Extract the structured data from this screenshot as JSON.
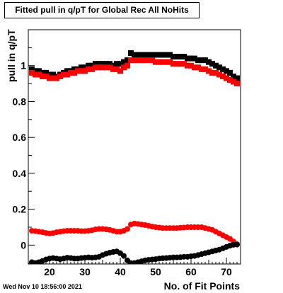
{
  "chart_data": {
    "type": "scatter",
    "title": "Fitted pull in q/pT for Global Rec All NoHits",
    "xlabel": "No. of Fit Points",
    "ylabel": "pull in q/pT",
    "xlim": [
      14,
      74
    ],
    "ylim": [
      -0.105,
      1.2
    ],
    "xticks": [
      20,
      30,
      40,
      50,
      60,
      70
    ],
    "yticks": [
      0,
      0.2,
      0.4,
      0.6,
      0.8,
      1
    ],
    "grid": false,
    "legend": "none",
    "series": [
      {
        "color": "#000000",
        "marker": "square",
        "x": [
          15,
          16,
          17,
          18,
          19,
          20,
          21,
          22,
          23,
          24,
          25,
          26,
          27,
          28,
          29,
          30,
          31,
          32,
          33,
          34,
          35,
          36,
          37,
          38,
          39,
          40,
          41,
          42,
          43,
          44,
          45,
          46,
          47,
          48,
          49,
          50,
          51,
          52,
          53,
          54,
          55,
          56,
          57,
          58,
          59,
          60,
          61,
          62,
          63,
          64,
          65,
          66,
          67,
          68,
          69,
          70,
          71,
          72,
          73
        ],
        "values": [
          0.98,
          0.97,
          0.97,
          0.96,
          0.96,
          0.95,
          0.95,
          0.94,
          0.95,
          0.96,
          0.97,
          0.97,
          0.98,
          0.98,
          0.99,
          0.99,
          1.0,
          1.0,
          1.01,
          1.01,
          1.01,
          1.01,
          1.01,
          1.0,
          1.01,
          1.01,
          1.02,
          1.03,
          1.07,
          1.06,
          1.06,
          1.06,
          1.06,
          1.06,
          1.06,
          1.06,
          1.06,
          1.06,
          1.06,
          1.06,
          1.05,
          1.05,
          1.05,
          1.05,
          1.04,
          1.04,
          1.04,
          1.03,
          1.03,
          1.03,
          1.02,
          1.01,
          1.0,
          0.99,
          0.98,
          0.97,
          0.96,
          0.94,
          0.93
        ]
      },
      {
        "color": "#ff0000",
        "marker": "square",
        "x": [
          15,
          16,
          17,
          18,
          19,
          20,
          21,
          22,
          23,
          24,
          25,
          26,
          27,
          28,
          29,
          30,
          31,
          32,
          33,
          34,
          35,
          36,
          37,
          38,
          39,
          40,
          41,
          42,
          43,
          44,
          45,
          46,
          47,
          48,
          49,
          50,
          51,
          52,
          53,
          54,
          55,
          56,
          57,
          58,
          59,
          60,
          61,
          62,
          63,
          64,
          65,
          66,
          67,
          68,
          69,
          70,
          71,
          72,
          73
        ],
        "values": [
          0.96,
          0.95,
          0.95,
          0.94,
          0.94,
          0.93,
          0.93,
          0.93,
          0.94,
          0.95,
          0.95,
          0.96,
          0.96,
          0.97,
          0.97,
          0.97,
          0.98,
          0.98,
          0.99,
          0.99,
          0.99,
          0.99,
          0.99,
          0.98,
          0.98,
          0.97,
          0.99,
          1.0,
          1.03,
          1.03,
          1.03,
          1.03,
          1.03,
          1.03,
          1.03,
          1.02,
          1.02,
          1.02,
          1.02,
          1.02,
          1.01,
          1.01,
          1.01,
          1.01,
          1.0,
          1.0,
          0.99,
          0.99,
          0.98,
          0.98,
          0.97,
          0.96,
          0.96,
          0.95,
          0.94,
          0.93,
          0.92,
          0.91,
          0.9
        ]
      },
      {
        "color": "#ff0000",
        "marker": "circle",
        "x": [
          15,
          16,
          17,
          18,
          19,
          20,
          21,
          22,
          23,
          24,
          25,
          26,
          27,
          28,
          29,
          30,
          31,
          32,
          33,
          34,
          35,
          36,
          37,
          38,
          39,
          40,
          41,
          42,
          43,
          44,
          45,
          46,
          47,
          48,
          49,
          50,
          51,
          52,
          53,
          54,
          55,
          56,
          57,
          58,
          59,
          60,
          61,
          62,
          63,
          64,
          65,
          66,
          67,
          68,
          69,
          70,
          71,
          72,
          73
        ],
        "values": [
          0.08,
          0.078,
          0.075,
          0.072,
          0.068,
          0.065,
          0.067,
          0.072,
          0.075,
          0.078,
          0.08,
          0.08,
          0.08,
          0.08,
          0.078,
          0.078,
          0.08,
          0.083,
          0.088,
          0.09,
          0.09,
          0.088,
          0.085,
          0.08,
          0.075,
          0.075,
          0.08,
          0.09,
          0.115,
          0.12,
          0.118,
          0.115,
          0.112,
          0.108,
          0.103,
          0.1,
          0.098,
          0.095,
          0.095,
          0.095,
          0.095,
          0.095,
          0.097,
          0.098,
          0.1,
          0.1,
          0.1,
          0.1,
          0.1,
          0.095,
          0.09,
          0.085,
          0.075,
          0.065,
          0.055,
          0.045,
          0.035,
          0.02,
          0.005
        ]
      },
      {
        "color": "#000000",
        "marker": "circle",
        "x": [
          15,
          16,
          17,
          18,
          19,
          20,
          21,
          22,
          23,
          24,
          25,
          26,
          27,
          28,
          29,
          30,
          31,
          32,
          33,
          34,
          35,
          36,
          37,
          38,
          39,
          40,
          41,
          42,
          43,
          44,
          45,
          46,
          47,
          48,
          49,
          50,
          51,
          52,
          53,
          54,
          55,
          56,
          57,
          58,
          59,
          60,
          61,
          62,
          63,
          64,
          65,
          66,
          67,
          68,
          69,
          70,
          71,
          72,
          73
        ],
        "values": [
          -0.095,
          -0.1,
          -0.095,
          -0.088,
          -0.08,
          -0.075,
          -0.072,
          -0.075,
          -0.078,
          -0.075,
          -0.07,
          -0.072,
          -0.075,
          -0.075,
          -0.072,
          -0.07,
          -0.068,
          -0.07,
          -0.068,
          -0.065,
          -0.055,
          -0.048,
          -0.042,
          -0.038,
          -0.035,
          -0.045,
          -0.06,
          -0.085,
          -0.1,
          -0.1,
          -0.095,
          -0.09,
          -0.085,
          -0.082,
          -0.08,
          -0.078,
          -0.075,
          -0.073,
          -0.072,
          -0.07,
          -0.068,
          -0.068,
          -0.067,
          -0.065,
          -0.065,
          -0.062,
          -0.06,
          -0.055,
          -0.05,
          -0.045,
          -0.04,
          -0.035,
          -0.03,
          -0.025,
          -0.018,
          -0.01,
          -0.003,
          0.002,
          0.003
        ]
      }
    ]
  },
  "footer": {
    "timestamp": "Wed Nov 10 18:56:00 2021"
  }
}
